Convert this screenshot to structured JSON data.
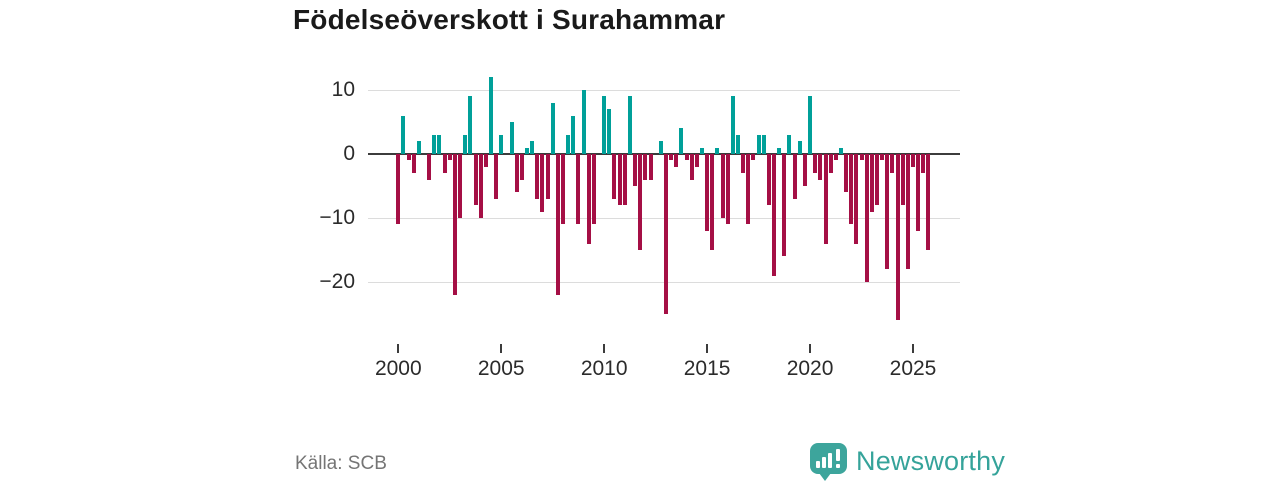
{
  "header": {
    "title": "Födelseöverskott i Surahammar"
  },
  "footer": {
    "source": "Källa: SCB",
    "brand": "Newsworthy"
  },
  "chart_data": {
    "type": "bar",
    "title": "Födelseöverskott i Surahammar",
    "x_unit": "quarter",
    "start_year": 2000,
    "start_quarter": 1,
    "x_tick_labels": [
      "2000",
      "2005",
      "2010",
      "2015",
      "2020",
      "2025"
    ],
    "x_tick_years": [
      2000,
      2005,
      2010,
      2015,
      2020,
      2025
    ],
    "y_tick_labels": [
      "10",
      "0",
      "−10",
      "−20"
    ],
    "y_ticks": [
      10,
      0,
      -10,
      -20
    ],
    "ylim": [
      -27,
      13
    ],
    "grid": true,
    "legend": "none",
    "positive_color": "#00a099",
    "negative_color": "#a50f45",
    "values": [
      -11,
      6,
      -1,
      -3,
      2,
      0,
      -4,
      3,
      3,
      -3,
      -1,
      -22,
      -10,
      3,
      9,
      -8,
      -10,
      -2,
      12,
      -7,
      3,
      0,
      5,
      -6,
      -4,
      1,
      2,
      -7,
      -9,
      -7,
      8,
      -22,
      -11,
      3,
      6,
      -11,
      10,
      -14,
      -11,
      0,
      9,
      7,
      -7,
      -8,
      -8,
      9,
      -5,
      -15,
      -4,
      -4,
      0,
      2,
      -25,
      -1,
      -2,
      4,
      -1,
      -4,
      -2,
      1,
      -12,
      -15,
      1,
      -10,
      -11,
      9,
      3,
      -3,
      -11,
      -1,
      3,
      3,
      -8,
      -19,
      1,
      -16,
      3,
      -7,
      2,
      -5,
      9,
      -3,
      -4,
      -14,
      -3,
      -1,
      1,
      -6,
      -11,
      -14,
      -1,
      -20,
      -9,
      -8,
      -1,
      -18,
      -3,
      -26,
      -8,
      -18,
      -2,
      -12,
      -3,
      -15
    ]
  }
}
